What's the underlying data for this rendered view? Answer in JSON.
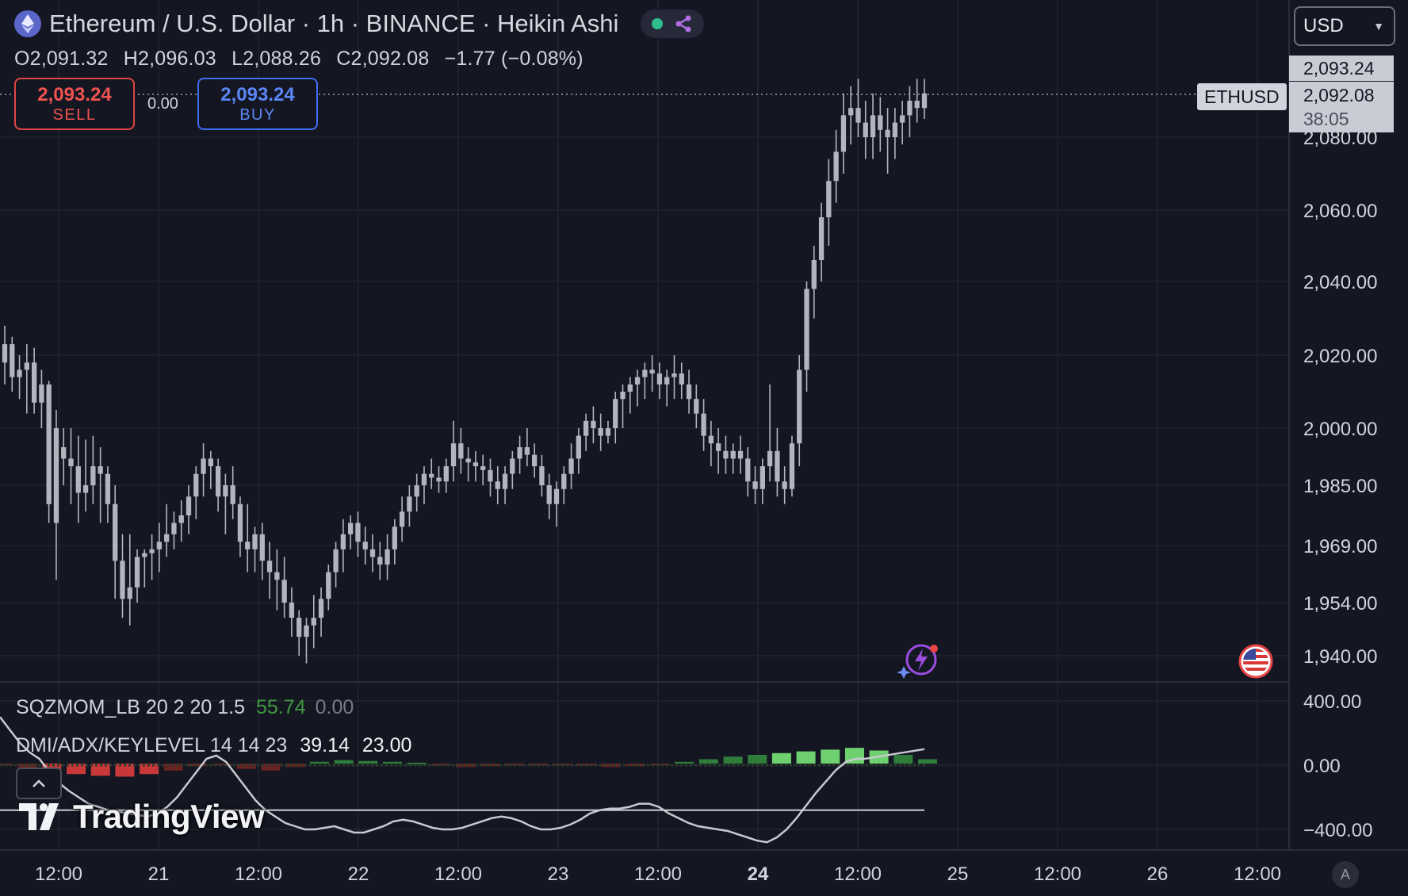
{
  "header": {
    "title": "Ethereum / U.S. Dollar · 1h · BINANCE · Heikin Ashi",
    "ohlc": {
      "o_label": "O",
      "o": "2,091.32",
      "h_label": "H",
      "h": "2,096.03",
      "l_label": "L",
      "l": "2,088.26",
      "c_label": "C",
      "c": "2,092.08",
      "change": "−1.77 (−0.08%)"
    }
  },
  "trade": {
    "sell_price": "2,093.24",
    "sell_label": "SELL",
    "buy_price": "2,093.24",
    "buy_label": "BUY",
    "spread": "0.00"
  },
  "currency": "USD",
  "price_scale": {
    "symbol": "ETHUSD",
    "ask": "2,093.24",
    "last": "2,092.08",
    "countdown": "38:05",
    "labels": [
      "2,080.00",
      "2,060.00",
      "2,040.00",
      "2,020.00",
      "2,000.00",
      "1,985.00",
      "1,969.00",
      "1,954.00",
      "1,940.00"
    ]
  },
  "indicator_scale": [
    "400.00",
    "0.00",
    "−400.00"
  ],
  "indicators": {
    "sqz": {
      "name": "SQZMOM_LB 20 2 20 1.5",
      "v1": "55.74",
      "v2": "0.00"
    },
    "dmi": {
      "name": "DMI/ADX/KEYLEVEL 14 14 23",
      "v1": "39.14",
      "v2": "23.00"
    }
  },
  "time_axis": [
    "12:00",
    "21",
    "12:00",
    "22",
    "12:00",
    "23",
    "12:00",
    "24",
    "12:00",
    "25",
    "12:00",
    "26",
    "12:00"
  ],
  "branding": "TradingView",
  "auto_scale": "A",
  "colors": {
    "background": "#141622",
    "candle": "#b2b5be",
    "sell": "#ef5350",
    "buy": "#5b86f7",
    "grid": "#232634"
  },
  "chart_data": {
    "type": "candlestick",
    "price_scale_labels": [
      2080,
      2060,
      2040,
      2020,
      2000,
      1985,
      1969,
      1954,
      1940
    ],
    "series": [
      {
        "name": "ETHUSD",
        "candles": [
          [
            2018,
            2028,
            2012,
            2023
          ],
          [
            2023,
            2025,
            2010,
            2014
          ],
          [
            2014,
            2020,
            2008,
            2016
          ],
          [
            2016,
            2023,
            2004,
            2018
          ],
          [
            2018,
            2022,
            2004,
            2007
          ],
          [
            2007,
            2016,
            2000,
            2012
          ],
          [
            2012,
            2013,
            1975,
            1980
          ],
          [
            2000,
            2005,
            1960,
            1975
          ],
          [
            1995,
            2000,
            1985,
            1992
          ],
          [
            1992,
            2000,
            1980,
            1990
          ],
          [
            1990,
            1998,
            1975,
            1983
          ],
          [
            1983,
            1997,
            1978,
            1985
          ],
          [
            1985,
            1998,
            1980,
            1990
          ],
          [
            1990,
            1995,
            1975,
            1988
          ],
          [
            1988,
            1990,
            1975,
            1980
          ],
          [
            1980,
            1985,
            1955,
            1965
          ],
          [
            1965,
            1972,
            1950,
            1955
          ],
          [
            1955,
            1972,
            1948,
            1958
          ],
          [
            1958,
            1968,
            1954,
            1966
          ],
          [
            1966,
            1968,
            1958,
            1967
          ],
          [
            1967,
            1972,
            1960,
            1968
          ],
          [
            1968,
            1975,
            1962,
            1970
          ],
          [
            1970,
            1980,
            1966,
            1972
          ],
          [
            1972,
            1978,
            1968,
            1975
          ],
          [
            1975,
            1981,
            1970,
            1977
          ],
          [
            1977,
            1985,
            1972,
            1982
          ],
          [
            1982,
            1990,
            1976,
            1988
          ],
          [
            1988,
            1996,
            1982,
            1992
          ],
          [
            1992,
            1994,
            1984,
            1990
          ],
          [
            1990,
            1992,
            1978,
            1982
          ],
          [
            1982,
            1988,
            1972,
            1985
          ],
          [
            1985,
            1990,
            1976,
            1980
          ],
          [
            1980,
            1982,
            1966,
            1970
          ],
          [
            1970,
            1980,
            1962,
            1968
          ],
          [
            1968,
            1974,
            1962,
            1972
          ],
          [
            1972,
            1975,
            1960,
            1965
          ],
          [
            1965,
            1970,
            1955,
            1962
          ],
          [
            1962,
            1968,
            1952,
            1960
          ],
          [
            1960,
            1966,
            1950,
            1954
          ],
          [
            1954,
            1958,
            1945,
            1950
          ],
          [
            1950,
            1952,
            1940,
            1945
          ],
          [
            1945,
            1950,
            1938,
            1948
          ],
          [
            1948,
            1956,
            1942,
            1950
          ],
          [
            1950,
            1958,
            1945,
            1955
          ],
          [
            1955,
            1964,
            1952,
            1962
          ],
          [
            1962,
            1970,
            1958,
            1968
          ],
          [
            1968,
            1976,
            1962,
            1972
          ],
          [
            1972,
            1977,
            1968,
            1975
          ],
          [
            1975,
            1978,
            1966,
            1970
          ],
          [
            1970,
            1974,
            1964,
            1968
          ],
          [
            1968,
            1972,
            1962,
            1966
          ],
          [
            1966,
            1970,
            1960,
            1964
          ],
          [
            1964,
            1972,
            1960,
            1968
          ],
          [
            1968,
            1976,
            1964,
            1974
          ],
          [
            1974,
            1982,
            1970,
            1978
          ],
          [
            1978,
            1985,
            1974,
            1982
          ],
          [
            1982,
            1988,
            1978,
            1985
          ],
          [
            1985,
            1990,
            1980,
            1988
          ],
          [
            1988,
            1992,
            1984,
            1987
          ],
          [
            1987,
            1990,
            1983,
            1986
          ],
          [
            1986,
            1992,
            1983,
            1990
          ],
          [
            1990,
            2002,
            1986,
            1996
          ],
          [
            1996,
            2000,
            1988,
            1992
          ],
          [
            1992,
            1995,
            1986,
            1991
          ],
          [
            1991,
            1994,
            1986,
            1990
          ],
          [
            1990,
            1993,
            1985,
            1989
          ],
          [
            1989,
            1992,
            1982,
            1986
          ],
          [
            1986,
            1990,
            1980,
            1984
          ],
          [
            1984,
            1990,
            1980,
            1988
          ],
          [
            1988,
            1994,
            1984,
            1992
          ],
          [
            1992,
            1998,
            1988,
            1995
          ],
          [
            1995,
            2000,
            1990,
            1993
          ],
          [
            1993,
            1996,
            1987,
            1990
          ],
          [
            1990,
            1993,
            1982,
            1985
          ],
          [
            1985,
            1988,
            1976,
            1980
          ],
          [
            1980,
            1986,
            1974,
            1984
          ],
          [
            1984,
            1990,
            1980,
            1988
          ],
          [
            1988,
            1996,
            1984,
            1992
          ],
          [
            1992,
            2000,
            1988,
            1998
          ],
          [
            1998,
            2004,
            1994,
            2002
          ],
          [
            2002,
            2006,
            1996,
            2000
          ],
          [
            2000,
            2004,
            1994,
            1998
          ],
          [
            1998,
            2002,
            1996,
            2000
          ],
          [
            2000,
            2010,
            1996,
            2008
          ],
          [
            2008,
            2012,
            2000,
            2010
          ],
          [
            2010,
            2014,
            2004,
            2012
          ],
          [
            2012,
            2016,
            2006,
            2014
          ],
          [
            2014,
            2018,
            2008,
            2016
          ],
          [
            2016,
            2020,
            2010,
            2015
          ],
          [
            2015,
            2018,
            2008,
            2012
          ],
          [
            2012,
            2016,
            2006,
            2014
          ],
          [
            2014,
            2020,
            2008,
            2015
          ],
          [
            2015,
            2018,
            2008,
            2012
          ],
          [
            2012,
            2016,
            2004,
            2008
          ],
          [
            2008,
            2012,
            2000,
            2004
          ],
          [
            2004,
            2008,
            1994,
            1998
          ],
          [
            1998,
            2002,
            1990,
            1996
          ],
          [
            1996,
            2000,
            1988,
            1994
          ],
          [
            1994,
            1998,
            1988,
            1992
          ],
          [
            1992,
            1996,
            1988,
            1994
          ],
          [
            1994,
            1998,
            1988,
            1992
          ],
          [
            1992,
            1995,
            1982,
            1986
          ],
          [
            1986,
            1990,
            1980,
            1984
          ],
          [
            1984,
            1992,
            1980,
            1990
          ],
          [
            1990,
            2012,
            1986,
            1994
          ],
          [
            1994,
            2000,
            1982,
            1986
          ],
          [
            1986,
            1990,
            1980,
            1984
          ],
          [
            1984,
            1998,
            1982,
            1996
          ],
          [
            1996,
            2020,
            1990,
            2016
          ],
          [
            2016,
            2040,
            2010,
            2038
          ],
          [
            2038,
            2050,
            2030,
            2046
          ],
          [
            2046,
            2062,
            2040,
            2058
          ],
          [
            2058,
            2074,
            2050,
            2068
          ],
          [
            2068,
            2082,
            2062,
            2076
          ],
          [
            2076,
            2092,
            2070,
            2086
          ],
          [
            2086,
            2094,
            2078,
            2088
          ],
          [
            2088,
            2096,
            2080,
            2084
          ],
          [
            2084,
            2090,
            2074,
            2080
          ],
          [
            2080,
            2092,
            2074,
            2086
          ],
          [
            2086,
            2091,
            2076,
            2082
          ],
          [
            2082,
            2088,
            2070,
            2080
          ],
          [
            2080,
            2088,
            2074,
            2084
          ],
          [
            2084,
            2090,
            2078,
            2086
          ],
          [
            2086,
            2094,
            2080,
            2090
          ],
          [
            2090,
            2096,
            2084,
            2088
          ],
          [
            2088,
            2096,
            2085,
            2092
          ]
        ]
      }
    ],
    "ohlc_order": [
      "open",
      "high",
      "low",
      "close"
    ],
    "x_axis_labels": [
      "12:00",
      "21",
      "12:00",
      "22",
      "12:00",
      "23",
      "12:00",
      "24",
      "12:00",
      "25",
      "12:00",
      "26",
      "12:00"
    ],
    "indicator": {
      "name": "DMI/ADX/KEYLEVEL",
      "scale_labels": [
        400,
        0,
        -400
      ],
      "adx_line": [
        300,
        220,
        140,
        80,
        40,
        -40,
        -110,
        -160,
        -200,
        -240,
        -260,
        -280,
        -290,
        -300,
        -310,
        -320,
        -300,
        -260,
        -200,
        -120,
        -40,
        40,
        60,
        20,
        -60,
        -140,
        -220,
        -280,
        -320,
        -360,
        -380,
        -400,
        -400,
        -390,
        -380,
        -400,
        -420,
        -420,
        -400,
        -380,
        -350,
        -340,
        -350,
        -370,
        -390,
        -400,
        -400,
        -390,
        -370,
        -350,
        -330,
        -320,
        -330,
        -350,
        -380,
        -400,
        -400,
        -390,
        -370,
        -340,
        -300,
        -280,
        -270,
        -270,
        -260,
        -240,
        -240,
        -260,
        -300,
        -330,
        -360,
        -380,
        -390,
        -400,
        -410,
        -430,
        -450,
        -470,
        -480,
        -450,
        -400,
        -330,
        -250,
        -170,
        -100,
        -30,
        20,
        40,
        40,
        50,
        60,
        70,
        80,
        90,
        100
      ],
      "key_level": -280,
      "momentum_histogram": [
        0,
        -5,
        -10,
        -12,
        -14,
        -15,
        -12,
        -8,
        -3,
        0,
        -6,
        -8,
        -4,
        2,
        4,
        3,
        2,
        1,
        -2,
        -4,
        -3,
        -1,
        0,
        0,
        -2,
        -4,
        -3,
        -1,
        2,
        5,
        8,
        10,
        12,
        14,
        16,
        18,
        15,
        10,
        5
      ]
    }
  }
}
